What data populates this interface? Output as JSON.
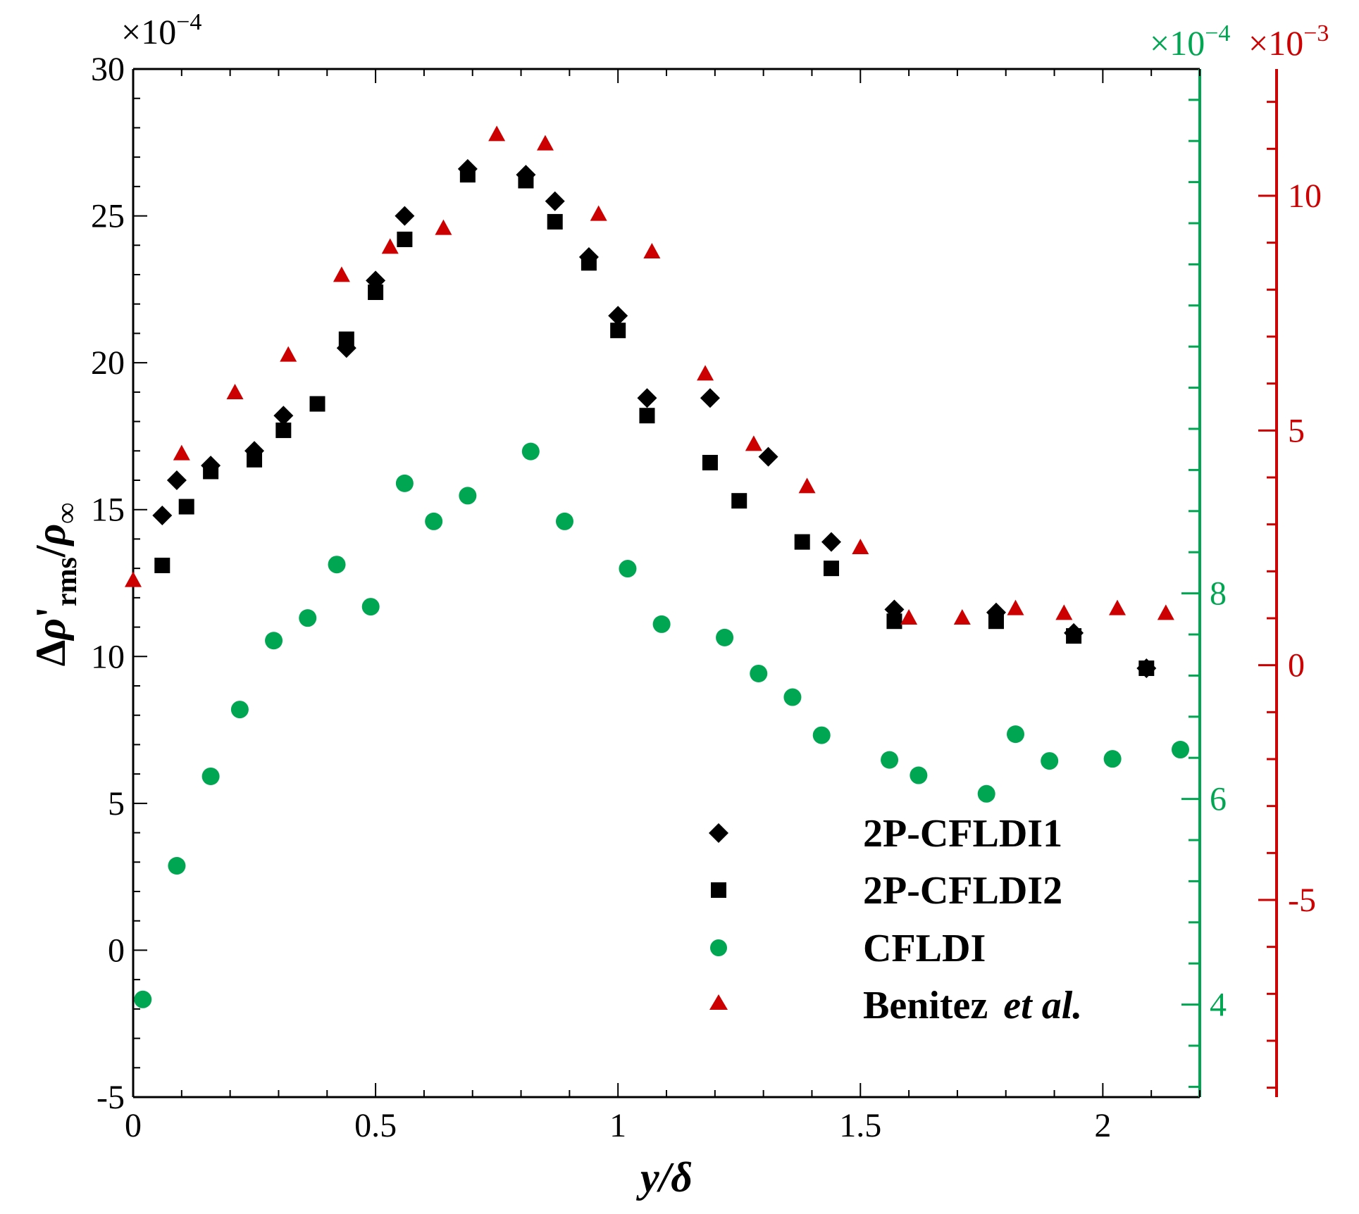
{
  "chart_data": {
    "type": "scatter",
    "xlabel": {
      "var": "y",
      "slash": "/",
      "delta": "δ"
    },
    "ylabel": {
      "delta": "Δ",
      "rho": "ρ",
      "prime": "'",
      "sub": "rms",
      "slash": "/",
      "rho2": "ρ",
      "sub2": "∞"
    },
    "x_axis": {
      "range": [
        0,
        2.2
      ],
      "ticks": [
        0,
        0.5,
        1,
        1.5,
        2
      ],
      "tick_labels": [
        "0",
        "0.5",
        "1",
        "1.5",
        "2"
      ]
    },
    "y_axis_left": {
      "range": [
        -5,
        30
      ],
      "ticks": [
        -5,
        0,
        5,
        10,
        15,
        20,
        25,
        30
      ],
      "tick_labels": [
        "-5",
        "0",
        "5",
        "10",
        "15",
        "20",
        "25",
        "30"
      ],
      "multiplier": {
        "base": "×10",
        "exp": "−4"
      },
      "color": "#000000"
    },
    "y_axis_right_green": {
      "range": [
        3.1,
        13.1
      ],
      "ticks": [
        4,
        6,
        8
      ],
      "tick_labels": [
        "4",
        "6",
        "8"
      ],
      "multiplier": {
        "base": "×10",
        "exp": "−4"
      },
      "color": "#00a651"
    },
    "y_axis_right_red": {
      "range": [
        -9.2,
        12.7
      ],
      "ticks": [
        -5,
        0,
        5,
        10
      ],
      "tick_labels": [
        "-5",
        "0",
        "5",
        "10"
      ],
      "multiplier": {
        "base": "×10",
        "exp": "−3"
      },
      "color": "#cc0000"
    },
    "legend_position": "bottom-right",
    "series": [
      {
        "name": "2P-CFLDI1",
        "marker": "diamond",
        "color": "#000000",
        "axis": "left",
        "x": [
          0.06,
          0.09,
          0.16,
          0.25,
          0.31,
          0.44,
          0.5,
          0.56,
          0.69,
          0.81,
          0.87,
          0.94,
          1.0,
          1.06,
          1.19,
          1.31,
          1.44,
          1.57,
          1.78,
          1.94,
          2.09
        ],
        "y": [
          14.8,
          16.0,
          16.5,
          17.0,
          18.2,
          20.5,
          22.8,
          25.0,
          26.6,
          26.4,
          25.5,
          23.6,
          21.6,
          18.8,
          18.8,
          16.8,
          13.9,
          11.6,
          11.5,
          10.8,
          9.6
        ]
      },
      {
        "name": "2P-CFLDI2",
        "marker": "square",
        "color": "#000000",
        "axis": "left",
        "x": [
          0.06,
          0.11,
          0.16,
          0.25,
          0.31,
          0.38,
          0.44,
          0.5,
          0.56,
          0.69,
          0.81,
          0.87,
          0.94,
          1.0,
          1.06,
          1.19,
          1.25,
          1.38,
          1.44,
          1.57,
          1.78,
          1.94,
          2.09
        ],
        "y": [
          13.1,
          15.1,
          16.3,
          16.7,
          17.7,
          18.6,
          20.8,
          22.4,
          24.2,
          26.4,
          26.2,
          24.8,
          23.4,
          21.1,
          18.2,
          16.6,
          15.3,
          13.9,
          13.0,
          11.2,
          11.2,
          10.7,
          9.6
        ]
      },
      {
        "name": "CFLDI",
        "marker": "circle",
        "color": "#00a651",
        "axis": "right_green",
        "x": [
          0.02,
          0.09,
          0.16,
          0.22,
          0.29,
          0.36,
          0.42,
          0.49,
          0.56,
          0.62,
          0.69,
          0.82,
          0.89,
          1.02,
          1.09,
          1.22,
          1.29,
          1.36,
          1.42,
          1.56,
          1.62,
          1.76,
          1.82,
          1.89,
          2.02,
          2.16
        ],
        "y": [
          4.05,
          5.35,
          6.22,
          6.87,
          7.54,
          7.76,
          8.28,
          7.87,
          9.07,
          8.7,
          8.95,
          9.38,
          8.7,
          8.24,
          7.7,
          7.57,
          7.22,
          6.99,
          6.62,
          6.38,
          6.23,
          6.05,
          6.63,
          6.37,
          6.39,
          6.48
        ]
      },
      {
        "name": "Benitez et al.",
        "marker": "triangle",
        "color": "#cc0000",
        "axis": "right_red",
        "x": [
          0.0,
          0.1,
          0.21,
          0.32,
          0.43,
          0.53,
          0.64,
          0.75,
          0.85,
          0.96,
          1.07,
          1.18,
          1.28,
          1.39,
          1.5,
          1.6,
          1.71,
          1.82,
          1.92,
          2.03,
          2.13
        ],
        "y": [
          1.8,
          4.5,
          5.8,
          6.6,
          8.3,
          8.9,
          9.3,
          11.3,
          11.1,
          9.6,
          8.8,
          6.2,
          4.7,
          3.8,
          2.5,
          1.0,
          1.0,
          1.2,
          1.1,
          1.2,
          1.1
        ]
      }
    ],
    "legend": {
      "entries": [
        "2P-CFLDI1",
        "2P-CFLDI2",
        "CFLDI"
      ],
      "benitez_name": "Benitez",
      "benitez_suffix": "et al."
    }
  }
}
